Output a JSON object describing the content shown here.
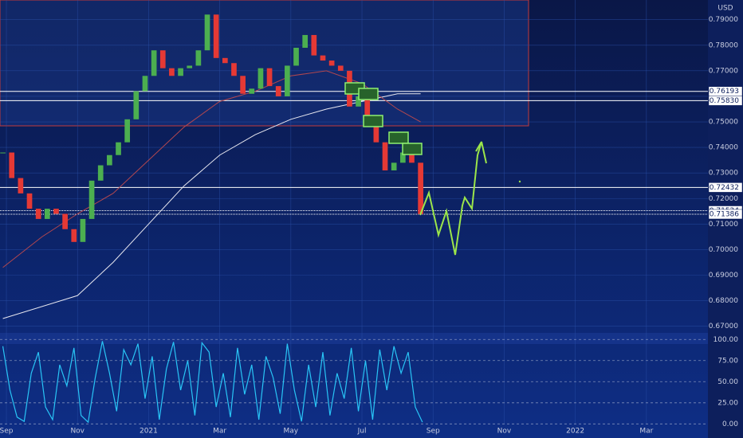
{
  "chart_data": [
    {
      "type": "candlestick",
      "y_axis_label": "USD",
      "up_color": "#4caf50",
      "down_color": "#e53935",
      "xlim": [
        -0.18,
        19.73
      ],
      "ylim": [
        0.6674,
        0.7977
      ],
      "xticks": [
        {
          "value": 0,
          "label": "Sep"
        },
        {
          "value": 2,
          "label": "Nov"
        },
        {
          "value": 4,
          "label": "2021"
        },
        {
          "value": 6,
          "label": "Mar"
        },
        {
          "value": 8,
          "label": "May"
        },
        {
          "value": 10,
          "label": "Jul"
        },
        {
          "value": 12,
          "label": "Sep"
        },
        {
          "value": 14,
          "label": "Nov"
        },
        {
          "value": 16,
          "label": "2022"
        },
        {
          "value": 18,
          "label": "Mar"
        }
      ],
      "yticks": [
        {
          "value": 0.67,
          "label": "0.67000"
        },
        {
          "value": 0.68,
          "label": "0.68000"
        },
        {
          "value": 0.69,
          "label": "0.69000"
        },
        {
          "value": 0.7,
          "label": "0.70000"
        },
        {
          "value": 0.71,
          "label": "0.71000"
        },
        {
          "value": 0.72,
          "label": "0.72000"
        },
        {
          "value": 0.73,
          "label": "0.73000"
        },
        {
          "value": 0.74,
          "label": "0.74000"
        },
        {
          "value": 0.75,
          "label": "0.75000"
        },
        {
          "value": 0.76,
          "label": "0.76000"
        },
        {
          "value": 0.77,
          "label": "0.77000"
        },
        {
          "value": 0.78,
          "label": "0.78000"
        },
        {
          "value": 0.79,
          "label": "0.79000"
        }
      ],
      "levels": [
        0.76193,
        {
          "value": 0.7583,
          "label": "0.75830"
        },
        0.72432,
        0.71524,
        0.71386
      ],
      "x": [
        -0.1,
        0.15,
        0.4,
        0.65,
        0.9,
        1.15,
        1.4,
        1.65,
        1.9,
        2.15,
        2.4,
        2.65,
        2.9,
        3.15,
        3.4,
        3.65,
        3.9,
        4.15,
        4.4,
        4.65,
        4.9,
        5.15,
        5.4,
        5.65,
        5.9,
        6.15,
        6.4,
        6.65,
        6.9,
        7.15,
        7.4,
        7.65,
        7.9,
        8.15,
        8.4,
        8.65,
        8.9,
        9.15,
        9.4,
        9.65,
        9.9,
        10.15,
        10.4,
        10.65,
        10.9,
        11.15,
        11.4,
        11.65
      ],
      "close": [
        0.738,
        0.728,
        0.722,
        0.716,
        0.712,
        0.716,
        0.714,
        0.708,
        0.703,
        0.712,
        0.727,
        0.733,
        0.737,
        0.742,
        0.751,
        0.762,
        0.768,
        0.778,
        0.771,
        0.768,
        0.771,
        0.772,
        0.778,
        0.792,
        0.775,
        0.773,
        0.768,
        0.761,
        0.763,
        0.771,
        0.764,
        0.76,
        0.772,
        0.779,
        0.784,
        0.776,
        0.774,
        0.772,
        0.77,
        0.756,
        0.76,
        0.752,
        0.742,
        0.731,
        0.734,
        0.738,
        0.734,
        0.7139
      ],
      "lines": [
        {
          "color": "#e8e8f0",
          "x": [
            -0.1,
            2,
            3,
            4,
            5,
            6,
            7,
            8,
            9,
            10,
            11,
            11.65
          ],
          "values": [
            0.673,
            0.682,
            0.695,
            0.71,
            0.725,
            0.737,
            0.745,
            0.751,
            0.755,
            0.758,
            0.761,
            0.761
          ]
        },
        {
          "color": "#b3474f",
          "x": [
            -0.1,
            1,
            2,
            3,
            4,
            5,
            6,
            7,
            8,
            9,
            10,
            11,
            11.65
          ],
          "values": [
            0.693,
            0.705,
            0.714,
            0.722,
            0.735,
            0.748,
            0.758,
            0.762,
            0.768,
            0.77,
            0.765,
            0.755,
            0.75
          ]
        }
      ]
    },
    {
      "type": "line",
      "color": "#29c5f6",
      "grid": true,
      "xlim": [
        -0.18,
        19.73
      ],
      "ylim": [
        -16.7,
        107.8
      ],
      "yticks": [
        {
          "value": 0,
          "label": "0.00"
        },
        {
          "value": 25,
          "label": "25.00"
        },
        {
          "value": 50,
          "label": "50.00"
        },
        {
          "value": 75,
          "label": "75.00"
        },
        {
          "value": 100,
          "label": "100.00"
        }
      ],
      "x": [
        -0.1,
        0.1,
        0.3,
        0.5,
        0.7,
        0.9,
        1.1,
        1.3,
        1.5,
        1.7,
        1.9,
        2.1,
        2.3,
        2.5,
        2.7,
        2.9,
        3.1,
        3.3,
        3.5,
        3.7,
        3.9,
        4.1,
        4.3,
        4.5,
        4.7,
        4.9,
        5.1,
        5.3,
        5.5,
        5.7,
        5.9,
        6.1,
        6.3,
        6.5,
        6.7,
        6.9,
        7.1,
        7.3,
        7.5,
        7.7,
        7.9,
        8.1,
        8.3,
        8.5,
        8.7,
        8.9,
        9.1,
        9.3,
        9.5,
        9.7,
        9.9,
        10.1,
        10.3,
        10.5,
        10.7,
        10.9,
        11.1,
        11.3,
        11.5,
        11.7
      ],
      "values": [
        92,
        40,
        8,
        3,
        60,
        85,
        20,
        5,
        70,
        45,
        90,
        10,
        2,
        55,
        98,
        60,
        15,
        88,
        70,
        95,
        30,
        80,
        5,
        65,
        97,
        40,
        75,
        10,
        96,
        85,
        20,
        60,
        8,
        90,
        35,
        70,
        5,
        80,
        55,
        12,
        95,
        40,
        3,
        70,
        20,
        85,
        10,
        60,
        30,
        90,
        15,
        75,
        5,
        88,
        40,
        92,
        60,
        85,
        20,
        2
      ]
    }
  ]
}
